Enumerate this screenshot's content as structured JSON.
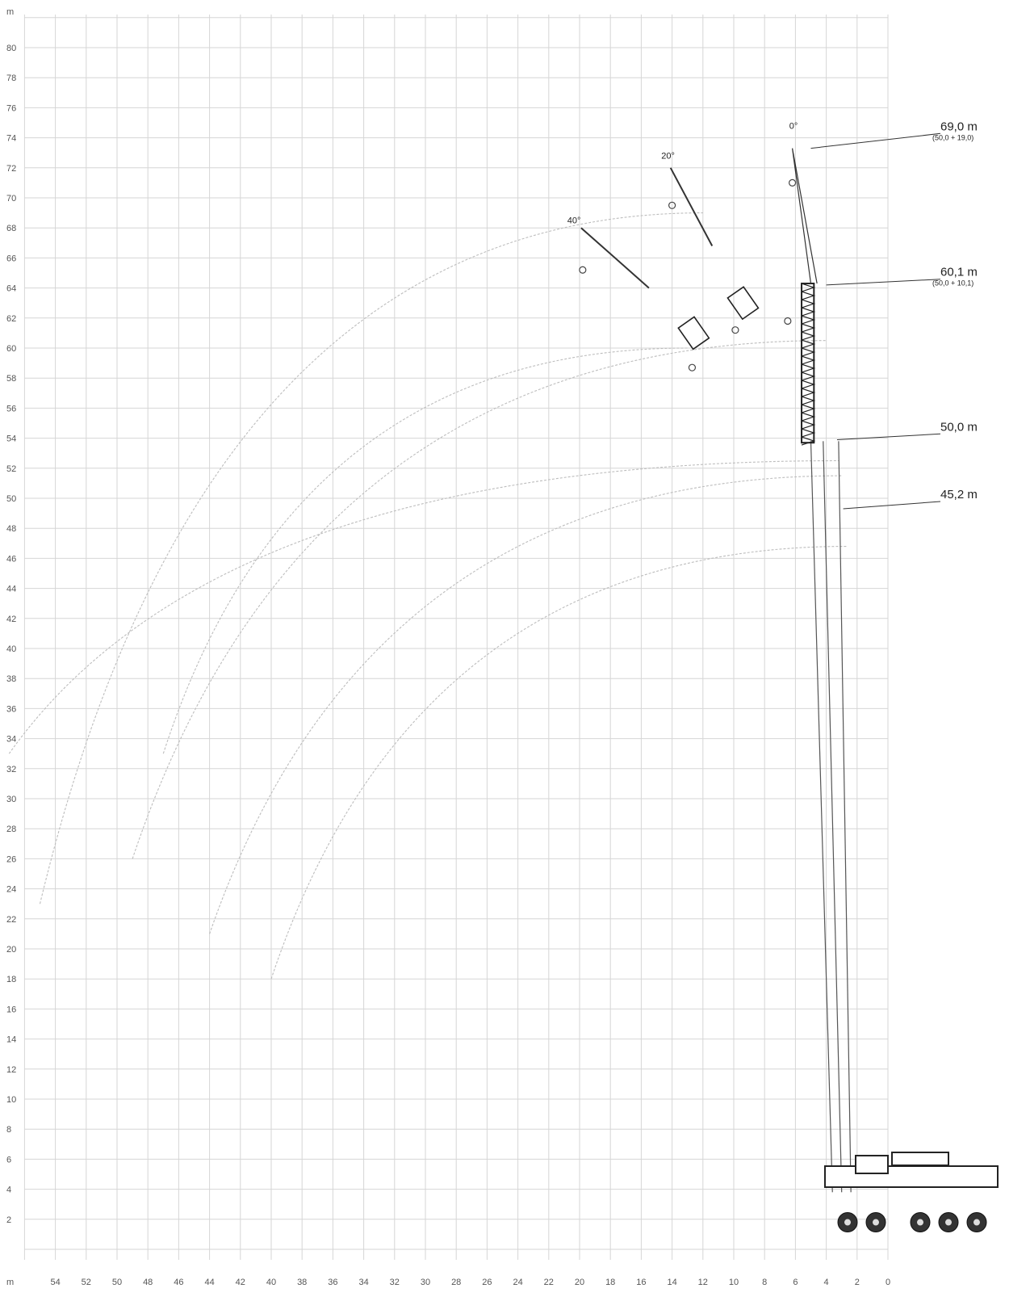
{
  "chart_data": {
    "type": "line",
    "description_axes": {
      "x": {
        "unit": "m",
        "ticks": [
          54,
          52,
          50,
          48,
          46,
          44,
          42,
          40,
          38,
          36,
          34,
          32,
          30,
          28,
          26,
          24,
          22,
          20,
          18,
          16,
          14,
          12,
          10,
          8,
          6,
          4,
          2,
          0
        ],
        "range": [
          57,
          -0.5
        ]
      },
      "y": {
        "unit": "m",
        "ticks": [
          2,
          4,
          6,
          8,
          10,
          12,
          14,
          16,
          18,
          20,
          22,
          24,
          26,
          28,
          30,
          32,
          34,
          36,
          38,
          40,
          42,
          44,
          46,
          48,
          50,
          52,
          54,
          56,
          58,
          60,
          62,
          64,
          66,
          68,
          70,
          72,
          74,
          76,
          78,
          80
        ],
        "range": [
          0,
          82
        ]
      }
    },
    "x_unit_label": "m",
    "y_unit_label": "m",
    "boom_labels": [
      {
        "text": "69,0 m",
        "sub": "(50,0 + 19,0)",
        "anchor_x": 5.0,
        "anchor_y": 73.3
      },
      {
        "text": "60,1 m",
        "sub": "(50,0 + 10,1)",
        "anchor_x": 4.0,
        "anchor_y": 64.2
      },
      {
        "text": "50,0 m",
        "sub": "",
        "anchor_x": 3.3,
        "anchor_y": 53.9
      },
      {
        "text": "45,2 m",
        "sub": "",
        "anchor_x": 2.9,
        "anchor_y": 49.3
      }
    ],
    "angle_labels": [
      {
        "text": "0°",
        "x": 6.4,
        "y": 74.6
      },
      {
        "text": "20°",
        "x": 14.7,
        "y": 72.6
      },
      {
        "text": "40°",
        "x": 20.8,
        "y": 68.3
      }
    ],
    "arcs": [
      {
        "radius_end_x": 57.0,
        "end_y": 33.0,
        "top_x": 3.2,
        "top_y": 52.5
      },
      {
        "radius_end_x": 49.0,
        "end_y": 26.0,
        "top_x": 4.0,
        "top_y": 60.5
      },
      {
        "radius_end_x": 44.0,
        "end_y": 21.0,
        "top_x": 3.0,
        "top_y": 51.5
      },
      {
        "radius_end_x": 40.0,
        "end_y": 18.0,
        "top_x": 2.6,
        "top_y": 46.8
      },
      {
        "radius_end_x": 55.0,
        "end_y": 23.0,
        "top_x": 12.0,
        "top_y": 69.0
      },
      {
        "radius_end_x": 47.0,
        "end_y": 33.0,
        "top_x": 13.0,
        "top_y": 60.0
      }
    ]
  }
}
